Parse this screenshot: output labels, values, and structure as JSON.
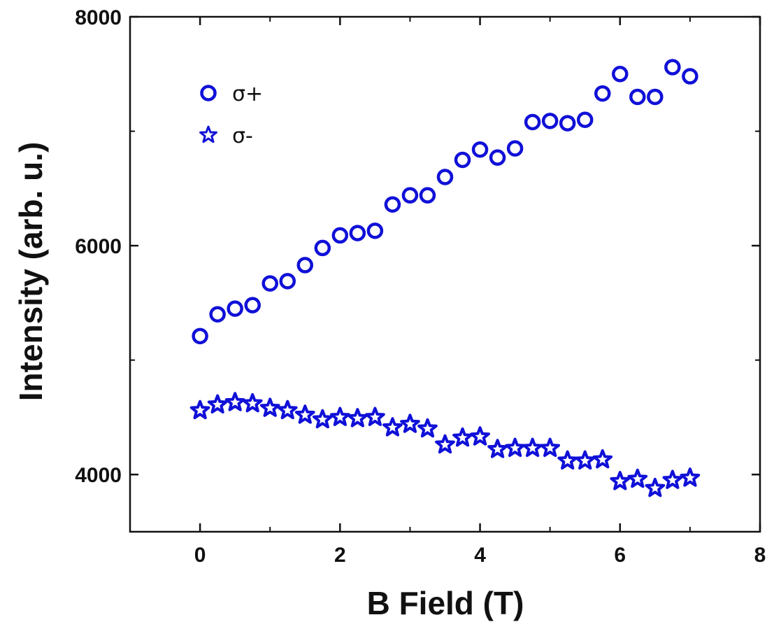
{
  "chart_data": {
    "type": "scatter",
    "xlabel": "B Field (T)",
    "ylabel": "Intensity (arb. u.)",
    "xlim": [
      -1,
      8
    ],
    "ylim": [
      3500,
      8000
    ],
    "x_ticks": [
      "0",
      "2",
      "4",
      "6",
      "8"
    ],
    "y_ticks": [
      "4000",
      "6000",
      "8000"
    ],
    "x_tick_values": [
      0,
      2,
      4,
      6,
      8
    ],
    "y_tick_values": [
      4000,
      6000,
      8000
    ],
    "y_minor_tick_values": [
      5000,
      7000
    ],
    "x_minor_tick_values": [
      -1,
      1,
      3,
      5,
      7
    ],
    "grid": false,
    "legend_position": "top-left",
    "color": "#1010d8",
    "series": [
      {
        "name": "σ+",
        "marker": "circle",
        "x": [
          0,
          0.25,
          0.5,
          0.75,
          1,
          1.25,
          1.5,
          1.75,
          2,
          2.25,
          2.5,
          2.75,
          3,
          3.25,
          3.5,
          3.75,
          4,
          4.25,
          4.5,
          4.75,
          5,
          5.25,
          5.5,
          5.75,
          6,
          6.25,
          6.5,
          6.75,
          7
        ],
        "y": [
          5210,
          5400,
          5450,
          5480,
          5670,
          5690,
          5830,
          5980,
          6090,
          6110,
          6130,
          6360,
          6440,
          6440,
          6600,
          6750,
          6840,
          6770,
          6850,
          7080,
          7090,
          7070,
          7100,
          7330,
          7500,
          7300,
          7300,
          7560,
          7480
        ]
      },
      {
        "name": "σ-",
        "marker": "star",
        "x": [
          0,
          0.25,
          0.5,
          0.75,
          1,
          1.25,
          1.5,
          1.75,
          2,
          2.25,
          2.5,
          2.75,
          3,
          3.25,
          3.5,
          3.75,
          4,
          4.25,
          4.5,
          4.75,
          5,
          5.25,
          5.5,
          5.75,
          6,
          6.25,
          6.5,
          6.75,
          7
        ],
        "y": [
          4560,
          4610,
          4630,
          4620,
          4580,
          4560,
          4520,
          4480,
          4500,
          4490,
          4500,
          4410,
          4440,
          4400,
          4260,
          4320,
          4330,
          4220,
          4230,
          4230,
          4230,
          4120,
          4120,
          4130,
          3940,
          3960,
          3880,
          3950,
          3970
        ]
      }
    ]
  }
}
